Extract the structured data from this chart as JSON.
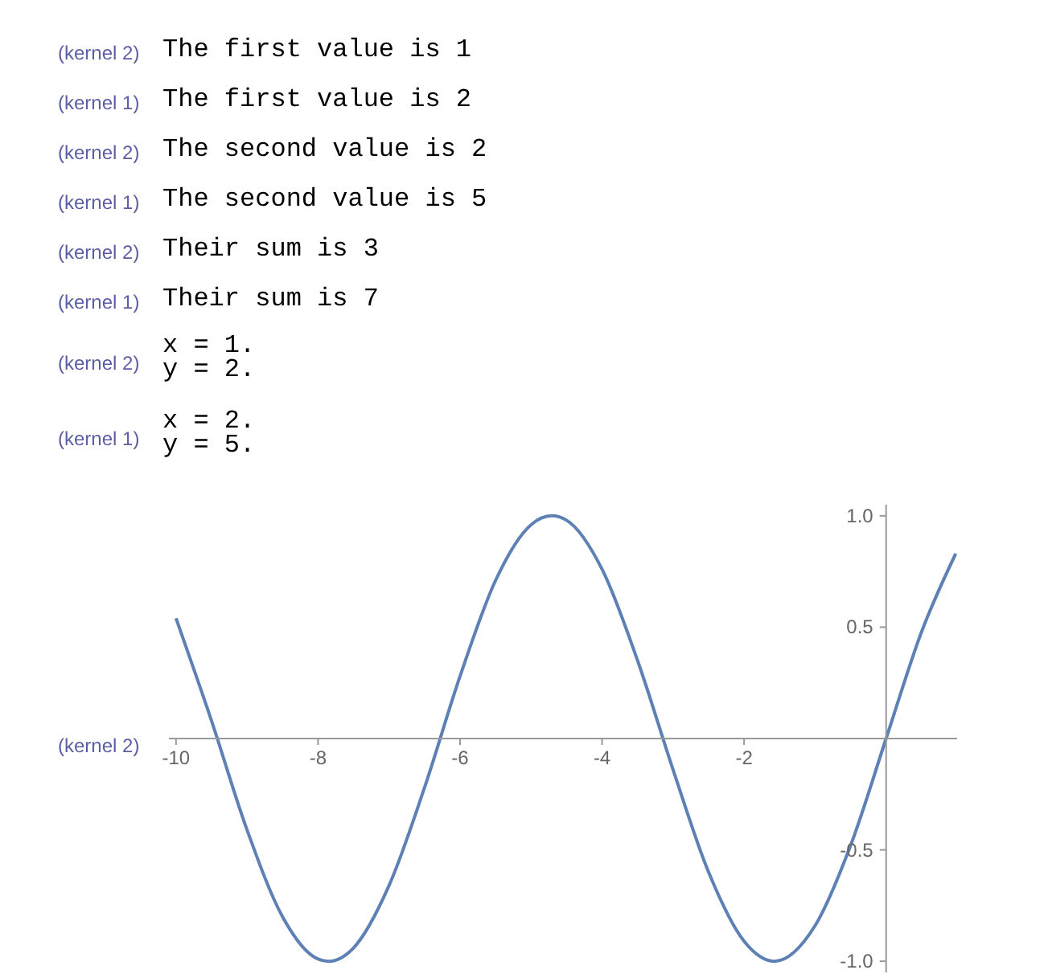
{
  "chart_data": {
    "type": "line",
    "annotations": [
      "(kernel 2)",
      "The first value is 1",
      "(kernel 1)",
      "The first value is 2",
      "(kernel 2)",
      "The second value is 2",
      "(kernel 1)",
      "The second value is 5",
      "(kernel 2)",
      "Their sum is 3",
      "(kernel 1)",
      "Their sum is 7",
      "(kernel 2)",
      "x = 1.\ny = 2.",
      "(kernel 1)",
      "x = 2.\ny = 5.",
      "(kernel 2)"
    ],
    "x": [
      -10,
      -9.5,
      -9,
      -8.5,
      -8,
      -7.85,
      -7.5,
      -7,
      -6.5,
      -6,
      -5.5,
      -5,
      -4.71,
      -4.5,
      -4,
      -3.5,
      -3,
      -2.5,
      -2,
      -1.57,
      -1,
      -0.5,
      0,
      0.5,
      0.98
    ],
    "series": [
      {
        "color": "#5e81b5",
        "values": [
          0.54,
          0.08,
          -0.41,
          -0.8,
          -0.99,
          -1.0,
          -0.94,
          -0.66,
          -0.22,
          0.28,
          0.71,
          0.96,
          1.0,
          0.98,
          0.76,
          0.35,
          -0.14,
          -0.6,
          -0.91,
          -1.0,
          -0.84,
          -0.48,
          0,
          0.48,
          0.83
        ]
      }
    ],
    "xlim": [
      -10.1,
      1
    ],
    "ylim": [
      -1.05,
      1.05
    ],
    "xticks": [
      -10,
      -8,
      -6,
      -4,
      -2
    ],
    "yticks": [
      {
        "value": -1,
        "label": "-1.0"
      },
      -0.5,
      0.5,
      {
        "value": 1,
        "label": "1.0"
      }
    ]
  }
}
